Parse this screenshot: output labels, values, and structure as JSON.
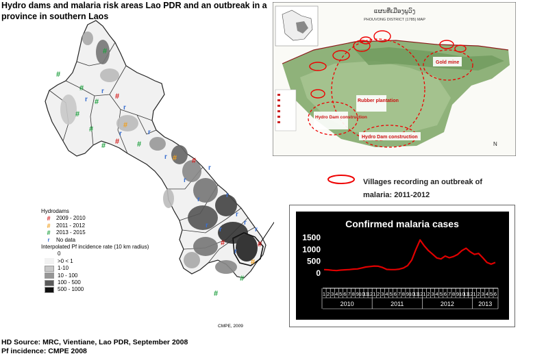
{
  "title": "Hydro dams and malaria risk areas Lao PDR and an outbreak in a province in southern Laos",
  "legend": {
    "hydrodams_title": "Hydrodams",
    "hydrodams": [
      {
        "symbol": "#",
        "label": "2009 - 2010",
        "color": "#d42020"
      },
      {
        "symbol": "#",
        "label": "2011 - 2012",
        "color": "#f0a020"
      },
      {
        "symbol": "#",
        "label": "2013 - 2015",
        "color": "#20a040"
      },
      {
        "symbol": "r",
        "label": "No data",
        "color": "#3a6fd0"
      }
    ],
    "incidence_title": "Interpolated Pf incidence rate (10 km radius)",
    "incidence": [
      {
        "label": "0",
        "color": "#ffffff"
      },
      {
        "label": ">0 < 1",
        "color": "#f2f2f2"
      },
      {
        "label": "1-10",
        "color": "#c8c8c8"
      },
      {
        "label": "10 - 100",
        "color": "#969696"
      },
      {
        "label": "100 - 500",
        "color": "#5a5a5a"
      },
      {
        "label": "500 - 1000",
        "color": "#101010"
      }
    ]
  },
  "map_credit": "CMPE, 2009",
  "source_lines": [
    "HD Source: MRC, Vientiane, Lao PDR, September 2008",
    "Pf incidence: CMPE 2008"
  ],
  "inset": {
    "header": "ແຜນທີ່ເມືອງພູວົງ",
    "subheader": "PHOUVONG DISTRICT (1785) MAP",
    "labels": [
      "Gold mine",
      "Rubber plantation",
      "Hydro Dam construction",
      "Hydro Dam construction"
    ],
    "north": "N"
  },
  "outbreak_note": {
    "line1": "Villages recording an outbreak of",
    "line2": "malaria:  2011-2012"
  },
  "chart_data": {
    "type": "line",
    "title": "Confirmed malaria cases",
    "ylim": [
      0,
      1500
    ],
    "yticks": [
      0,
      500,
      1000,
      1500
    ],
    "x_month_labels": [
      "1",
      "2",
      "3",
      "4",
      "5",
      "6",
      "7",
      "8",
      "9",
      "10",
      "11",
      "12",
      "1",
      "2",
      "3",
      "4",
      "5",
      "6",
      "7",
      "8",
      "9",
      "10",
      "11",
      "12",
      "1",
      "2",
      "3",
      "4",
      "5",
      "6",
      "7",
      "8",
      "9",
      "10",
      "11",
      "12",
      "1",
      "2",
      "3",
      "4",
      "5",
      "6"
    ],
    "year_labels": [
      "2010",
      "2011",
      "2012",
      "2013"
    ],
    "values": [
      150,
      140,
      120,
      110,
      130,
      140,
      150,
      170,
      180,
      220,
      260,
      280,
      300,
      290,
      240,
      160,
      150,
      150,
      170,
      220,
      320,
      550,
      1000,
      1400,
      1150,
      950,
      800,
      640,
      600,
      720,
      650,
      700,
      790,
      950,
      1050,
      900,
      790,
      830,
      650,
      450,
      380,
      450
    ],
    "line_color": "#e00000",
    "background": "#000000"
  }
}
